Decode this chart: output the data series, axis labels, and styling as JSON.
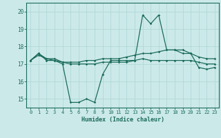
{
  "xlabel": "Humidex (Indice chaleur)",
  "ylabel": "",
  "background_color": "#cce9e9",
  "grid_color": "#b0d8d8",
  "line_color": "#1a6b5a",
  "xlim": [
    -0.5,
    23.5
  ],
  "ylim": [
    14.5,
    20.5
  ],
  "yticks": [
    15,
    16,
    17,
    18,
    19,
    20
  ],
  "xticks": [
    0,
    1,
    2,
    3,
    4,
    5,
    6,
    7,
    8,
    9,
    10,
    11,
    12,
    13,
    14,
    15,
    16,
    17,
    18,
    19,
    20,
    21,
    22,
    23
  ],
  "line1": [
    17.2,
    17.6,
    17.2,
    17.2,
    17.0,
    14.8,
    14.8,
    15.0,
    14.8,
    16.4,
    17.2,
    17.2,
    17.2,
    17.2,
    19.8,
    19.3,
    19.8,
    17.8,
    17.8,
    17.6,
    17.6,
    16.8,
    16.7,
    16.8
  ],
  "line2": [
    17.2,
    17.6,
    17.3,
    17.3,
    17.1,
    17.1,
    17.1,
    17.2,
    17.2,
    17.3,
    17.3,
    17.3,
    17.4,
    17.5,
    17.6,
    17.6,
    17.7,
    17.8,
    17.8,
    17.8,
    17.6,
    17.4,
    17.3,
    17.3
  ],
  "line3": [
    17.2,
    17.5,
    17.3,
    17.2,
    17.1,
    17.0,
    17.0,
    17.0,
    17.0,
    17.1,
    17.1,
    17.1,
    17.1,
    17.2,
    17.3,
    17.2,
    17.2,
    17.2,
    17.2,
    17.2,
    17.2,
    17.1,
    17.0,
    17.0
  ]
}
